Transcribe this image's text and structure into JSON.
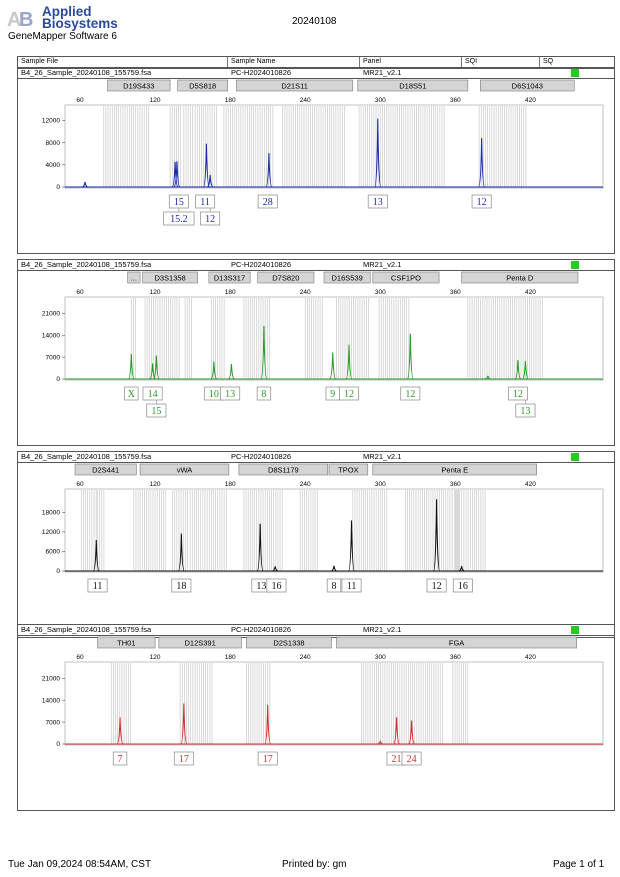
{
  "header": {
    "logo": "Applied Biosystems",
    "logo_lines": [
      "Applied",
      "Biosystems"
    ],
    "software": "GeneMapper Software 6",
    "date": "20240108",
    "columns": [
      "Sample File",
      "Sample Name",
      "Panel",
      "SQI",
      "SQ"
    ]
  },
  "footer": {
    "timestamp": "Tue Jan 09,2024 08:54AM, CST",
    "printed_by": "Printed by: gm",
    "page": "Page 1 of 1"
  },
  "colors": {
    "blue": "#1b2aa8",
    "green": "#2a9a2a",
    "black": "#111111",
    "red": "#d03030",
    "status_ok": "#22cc22"
  },
  "chart_data": [
    {
      "type": "line",
      "dye": "blue",
      "color": "#1b2aa8",
      "sample_file": "B4_26_Sample_20240108_155759.fsa",
      "sample_name": "PC-H2024010826",
      "panel": "MR21_v2.1",
      "x_ticks": [
        60,
        120,
        180,
        240,
        300,
        360,
        420
      ],
      "xlim": [
        48,
        478
      ],
      "y_ticks": [
        0,
        4000,
        8000,
        12000
      ],
      "ylim": [
        0,
        13500
      ],
      "markers": [
        {
          "name": "D19S433",
          "start": 82,
          "end": 132
        },
        {
          "name": "D5S818",
          "start": 138,
          "end": 178
        },
        {
          "name": "D21S11",
          "start": 185,
          "end": 278
        },
        {
          "name": "D18S51",
          "start": 282,
          "end": 370
        },
        {
          "name": "D6S1043",
          "start": 380,
          "end": 455
        }
      ],
      "bins": [
        [
          79,
          115
        ],
        [
          132,
          142
        ],
        [
          143,
          150
        ],
        [
          152,
          170
        ],
        [
          175,
          215
        ],
        [
          222,
          272
        ],
        [
          283,
          351
        ],
        [
          379,
          417
        ]
      ],
      "peaks": [
        {
          "x": 64,
          "h": 900
        },
        {
          "x": 136,
          "h": 4500
        },
        {
          "x": 137.5,
          "h": 4600
        },
        {
          "x": 161,
          "h": 7800
        },
        {
          "x": 164,
          "h": 2200
        },
        {
          "x": 211,
          "h": 6100
        },
        {
          "x": 298,
          "h": 12300
        },
        {
          "x": 381,
          "h": 8800
        }
      ],
      "alleles": [
        {
          "label": "15",
          "x": 139,
          "row": 0
        },
        {
          "label": "15.2",
          "x": 139,
          "row": 1
        },
        {
          "label": "11",
          "x": 160,
          "row": 0
        },
        {
          "label": "12",
          "x": 164,
          "row": 1
        },
        {
          "label": "28",
          "x": 210,
          "row": 0
        },
        {
          "label": "13",
          "x": 298,
          "row": 0
        },
        {
          "label": "12",
          "x": 381,
          "row": 0
        }
      ]
    },
    {
      "type": "line",
      "dye": "green",
      "color": "#2a9a2a",
      "sample_file": "B4_26_Sample_20240108_155759.fsa",
      "sample_name": "PC-H2024010826",
      "panel": "MR21_v2.1",
      "x_ticks": [
        60,
        120,
        180,
        240,
        300,
        360,
        420
      ],
      "xlim": [
        48,
        478
      ],
      "y_ticks": [
        0,
        7000,
        14000,
        21000
      ],
      "ylim": [
        0,
        24000
      ],
      "markers": [
        {
          "name": "...",
          "start": 98,
          "end": 108
        },
        {
          "name": "D3S1358",
          "start": 110,
          "end": 154
        },
        {
          "name": "D13S317",
          "start": 163,
          "end": 196
        },
        {
          "name": "D7S820",
          "start": 202,
          "end": 247
        },
        {
          "name": "D16S539",
          "start": 255,
          "end": 292
        },
        {
          "name": "CSF1PO",
          "start": 294,
          "end": 347
        },
        {
          "name": "Penta D",
          "start": 365,
          "end": 458
        }
      ],
      "bins": [
        [
          101,
          105
        ],
        [
          112,
          140
        ],
        [
          144,
          150
        ],
        [
          165,
          176
        ],
        [
          191,
          212
        ],
        [
          240,
          255
        ],
        [
          265,
          292
        ],
        [
          299,
          323
        ],
        [
          370,
          430
        ]
      ],
      "peaks": [
        {
          "x": 101,
          "h": 8000
        },
        {
          "x": 118,
          "h": 5000
        },
        {
          "x": 121,
          "h": 7500
        },
        {
          "x": 167,
          "h": 5500
        },
        {
          "x": 181,
          "h": 4800
        },
        {
          "x": 207,
          "h": 17000
        },
        {
          "x": 262,
          "h": 8500
        },
        {
          "x": 275,
          "h": 11000
        },
        {
          "x": 324,
          "h": 14500
        },
        {
          "x": 386,
          "h": 1000
        },
        {
          "x": 410,
          "h": 6000
        },
        {
          "x": 416,
          "h": 5800
        }
      ],
      "alleles": [
        {
          "label": "X",
          "x": 101,
          "row": 0
        },
        {
          "label": "14",
          "x": 118,
          "row": 0
        },
        {
          "label": "15",
          "x": 121,
          "row": 1
        },
        {
          "label": "10",
          "x": 167,
          "row": 0
        },
        {
          "label": "13",
          "x": 180,
          "row": 0
        },
        {
          "label": "8",
          "x": 207,
          "row": 0
        },
        {
          "label": "9",
          "x": 262,
          "row": 0
        },
        {
          "label": "12",
          "x": 275,
          "row": 0
        },
        {
          "label": "12",
          "x": 324,
          "row": 0
        },
        {
          "label": "12",
          "x": 410,
          "row": 0
        },
        {
          "label": "13",
          "x": 416,
          "row": 1
        }
      ]
    },
    {
      "type": "line",
      "dye": "yellow",
      "color": "#111111",
      "sample_file": "B4_26_Sample_20240108_155759.fsa",
      "sample_name": "PC-H2024010826",
      "panel": "MR21_v2.1",
      "x_ticks": [
        60,
        120,
        180,
        240,
        300,
        360,
        420
      ],
      "xlim": [
        48,
        478
      ],
      "y_ticks": [
        0,
        6000,
        12000,
        18000
      ],
      "ylim": [
        0,
        23000
      ],
      "markers": [
        {
          "name": "D2S441",
          "start": 56,
          "end": 105
        },
        {
          "name": "vWA",
          "start": 108,
          "end": 179
        },
        {
          "name": "D8S1179",
          "start": 187,
          "end": 258
        },
        {
          "name": "TPOX",
          "start": 259,
          "end": 290
        },
        {
          "name": "Penta E",
          "start": 294,
          "end": 425
        }
      ],
      "bins": [
        [
          61,
          73
        ],
        [
          74,
          80
        ],
        [
          103,
          130
        ],
        [
          134,
          146
        ],
        [
          148,
          178
        ],
        [
          191,
          223
        ],
        [
          236,
          250
        ],
        [
          278,
          306
        ],
        [
          320,
          364
        ],
        [
          360,
          385
        ]
      ],
      "peaks": [
        {
          "x": 73,
          "h": 9500
        },
        {
          "x": 141,
          "h": 11500
        },
        {
          "x": 204,
          "h": 14500
        },
        {
          "x": 216,
          "h": 1400
        },
        {
          "x": 263,
          "h": 1600
        },
        {
          "x": 277,
          "h": 15500
        },
        {
          "x": 345,
          "h": 22000
        },
        {
          "x": 365,
          "h": 1500
        }
      ],
      "alleles": [
        {
          "label": "11",
          "x": 74,
          "row": 0
        },
        {
          "label": "18",
          "x": 141,
          "row": 0
        },
        {
          "label": "13",
          "x": 205,
          "row": 0
        },
        {
          "label": "16",
          "x": 217,
          "row": 0
        },
        {
          "label": "8",
          "x": 263,
          "row": 0
        },
        {
          "label": "11",
          "x": 277,
          "row": 0
        },
        {
          "label": "12",
          "x": 345,
          "row": 0
        },
        {
          "label": "16",
          "x": 366,
          "row": 0
        }
      ]
    },
    {
      "type": "line",
      "dye": "red",
      "color": "#d03030",
      "sample_file": "B4_26_Sample_20240108_155759.fsa",
      "sample_name": "PC-H2024010826",
      "panel": "MR21_v2.1",
      "x_ticks": [
        60,
        120,
        180,
        240,
        300,
        360,
        420
      ],
      "xlim": [
        48,
        478
      ],
      "y_ticks": [
        0,
        7000,
        14000,
        21000
      ],
      "ylim": [
        0,
        24000
      ],
      "markers": [
        {
          "name": "TH01",
          "start": 74,
          "end": 120
        },
        {
          "name": "D12S391",
          "start": 123,
          "end": 189
        },
        {
          "name": "D2S1338",
          "start": 193,
          "end": 261
        },
        {
          "name": "FGA",
          "start": 265,
          "end": 457
        }
      ],
      "bins": [
        [
          85,
          102
        ],
        [
          140,
          167
        ],
        [
          193,
          213
        ],
        [
          285,
          351
        ],
        [
          358,
          370
        ]
      ],
      "peaks": [
        {
          "x": 92,
          "h": 8500
        },
        {
          "x": 143,
          "h": 13000
        },
        {
          "x": 210,
          "h": 12500
        },
        {
          "x": 300,
          "h": 800
        },
        {
          "x": 313,
          "h": 8500
        },
        {
          "x": 325,
          "h": 7500
        }
      ],
      "alleles": [
        {
          "label": "7",
          "x": 92,
          "row": 0
        },
        {
          "label": "17",
          "x": 143,
          "row": 0
        },
        {
          "label": "17",
          "x": 210,
          "row": 0
        },
        {
          "label": "21",
          "x": 313,
          "row": 0
        },
        {
          "label": "24",
          "x": 325,
          "row": 0
        }
      ]
    }
  ]
}
